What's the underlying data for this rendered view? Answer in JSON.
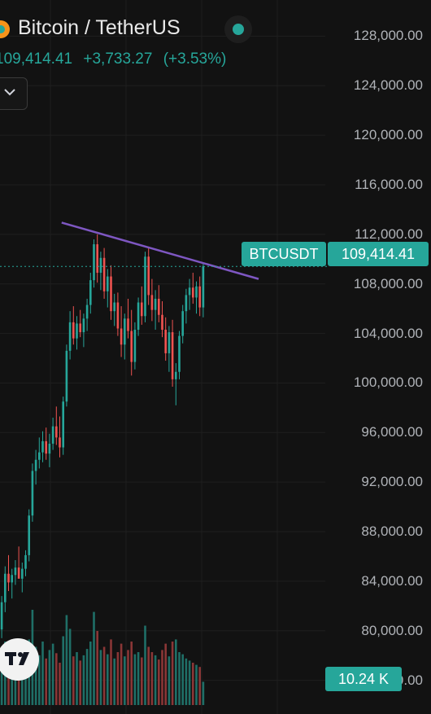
{
  "header": {
    "title": "Bitcoin / TetherUS",
    "last_price": "109,414.41",
    "change": "+3,733.27",
    "change_pct": "(+3.53%)"
  },
  "badges": {
    "ticker": "BTCUSDT",
    "price": "109,414.41",
    "volume": "10.24 K"
  },
  "colors": {
    "background": "#121212",
    "up": "#26a69a",
    "down": "#ef5350",
    "trendline": "#7e57c2"
  },
  "icons": [
    "bitcoin-icon",
    "status-dot-icon",
    "chevron-down-icon",
    "tradingview-logo-icon"
  ],
  "chart_data": {
    "type": "candlestick",
    "symbol": "BTCUSDT",
    "last_price": 109414.41,
    "ylim": [
      74000,
      130000
    ],
    "y_ticks": [
      "128,000.00",
      "124,000.00",
      "120,000.00",
      "116,000.00",
      "112,000.00",
      "108,000.00",
      "104,000.00",
      "100,000.00",
      "96,000.00",
      "92,000.00",
      "88,000.00",
      "84,000.00",
      "80,000.00",
      "76,000.00"
    ],
    "y_tick_values": [
      128000,
      124000,
      120000,
      116000,
      112000,
      108000,
      104000,
      100000,
      96000,
      92000,
      88000,
      84000,
      80000,
      76000
    ],
    "trendline": {
      "start": [
        0.143,
        112950
      ],
      "end": [
        0.6,
        108400
      ],
      "color": "#7e57c2"
    },
    "candles": [
      [
        80100,
        82800,
        79400,
        82300
      ],
      [
        82300,
        85200,
        81500,
        84600
      ],
      [
        84600,
        86100,
        83200,
        83900
      ],
      [
        83900,
        85000,
        82600,
        84500
      ],
      [
        84500,
        85700,
        83700,
        85100
      ],
      [
        85100,
        86800,
        84300,
        84200
      ],
      [
        84200,
        85500,
        83100,
        85000
      ],
      [
        85000,
        86500,
        84400,
        86100
      ],
      [
        86100,
        89800,
        85600,
        89300
      ],
      [
        89300,
        93500,
        88800,
        92900
      ],
      [
        92900,
        94600,
        91800,
        93800
      ],
      [
        93800,
        95600,
        93100,
        94400
      ],
      [
        94400,
        96100,
        93600,
        95300
      ],
      [
        95300,
        96400,
        93800,
        94300
      ],
      [
        94300,
        95900,
        93200,
        95100
      ],
      [
        95100,
        97200,
        94600,
        96500
      ],
      [
        96500,
        98100,
        95000,
        95600
      ],
      [
        95600,
        97300,
        94000,
        94800
      ],
      [
        94800,
        98900,
        94200,
        98500
      ],
      [
        98500,
        103100,
        98100,
        102600
      ],
      [
        102600,
        105800,
        101900,
        104900
      ],
      [
        104900,
        106200,
        103100,
        103600
      ],
      [
        103600,
        105400,
        102700,
        104800
      ],
      [
        104800,
        105900,
        103700,
        104100
      ],
      [
        104100,
        105600,
        102900,
        105200
      ],
      [
        105200,
        106800,
        104200,
        106300
      ],
      [
        106300,
        108900,
        105600,
        108300
      ],
      [
        108300,
        111600,
        107700,
        111200
      ],
      [
        111200,
        112000,
        108100,
        108900
      ],
      [
        108900,
        110600,
        107500,
        110100
      ],
      [
        110100,
        110900,
        106800,
        107400
      ],
      [
        107400,
        109200,
        106100,
        108600
      ],
      [
        108600,
        109500,
        105100,
        105800
      ],
      [
        105800,
        107200,
        104600,
        106500
      ],
      [
        106500,
        107300,
        103800,
        104400
      ],
      [
        104400,
        106200,
        102100,
        103100
      ],
      [
        103100,
        105600,
        101900,
        105200
      ],
      [
        105200,
        106800,
        103600,
        104200
      ],
      [
        104200,
        105900,
        100600,
        101700
      ],
      [
        101700,
        104900,
        101100,
        104300
      ],
      [
        104300,
        106900,
        103800,
        106500
      ],
      [
        106500,
        107800,
        104700,
        105400
      ],
      [
        105400,
        110600,
        104900,
        110200
      ],
      [
        110200,
        110900,
        106300,
        107100
      ],
      [
        107100,
        108400,
        105000,
        105900
      ],
      [
        105900,
        107500,
        104300,
        106800
      ],
      [
        106800,
        107900,
        104900,
        105500
      ],
      [
        105500,
        106600,
        103700,
        104300
      ],
      [
        104300,
        105300,
        101800,
        102400
      ],
      [
        102400,
        104600,
        100900,
        104100
      ],
      [
        104100,
        105100,
        99700,
        100300
      ],
      [
        100300,
        101600,
        98200,
        100900
      ],
      [
        100900,
        104200,
        100300,
        103800
      ],
      [
        103800,
        106300,
        103200,
        105800
      ],
      [
        105800,
        107600,
        104800,
        107100
      ],
      [
        107100,
        108400,
        105900,
        107700
      ],
      [
        107700,
        108900,
        106400,
        106900
      ],
      [
        106900,
        108200,
        105600,
        107800
      ],
      [
        107800,
        108600,
        105400,
        106100
      ],
      [
        106100,
        109600,
        105300,
        109414
      ]
    ],
    "volume_last": "10.24 K",
    "volumes": [
      0.45,
      0.6,
      0.38,
      0.52,
      0.41,
      0.48,
      0.35,
      0.5,
      0.62,
      0.9,
      0.55,
      0.47,
      0.6,
      0.44,
      0.52,
      0.58,
      0.49,
      0.4,
      0.65,
      0.85,
      0.72,
      0.46,
      0.5,
      0.42,
      0.47,
      0.53,
      0.6,
      0.88,
      0.7,
      0.52,
      0.55,
      0.48,
      0.62,
      0.44,
      0.5,
      0.58,
      0.46,
      0.52,
      0.6,
      0.48,
      0.5,
      0.45,
      0.75,
      0.55,
      0.5,
      0.47,
      0.43,
      0.52,
      0.58,
      0.46,
      0.6,
      0.62,
      0.5,
      0.48,
      0.44,
      0.42,
      0.4,
      0.38,
      0.36,
      0.22
    ]
  }
}
